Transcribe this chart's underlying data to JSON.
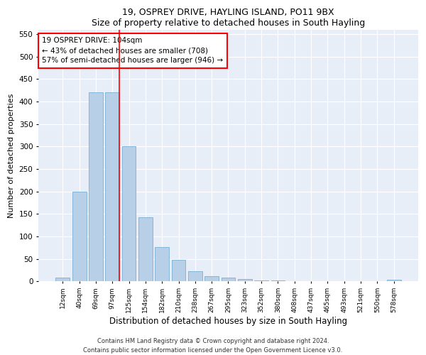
{
  "title": "19, OSPREY DRIVE, HAYLING ISLAND, PO11 9BX",
  "subtitle": "Size of property relative to detached houses in South Hayling",
  "xlabel": "Distribution of detached houses by size in South Hayling",
  "ylabel": "Number of detached properties",
  "categories": [
    "12sqm",
    "40sqm",
    "69sqm",
    "97sqm",
    "125sqm",
    "154sqm",
    "182sqm",
    "210sqm",
    "238sqm",
    "267sqm",
    "295sqm",
    "323sqm",
    "352sqm",
    "380sqm",
    "408sqm",
    "437sqm",
    "465sqm",
    "493sqm",
    "521sqm",
    "550sqm",
    "578sqm"
  ],
  "values": [
    8,
    200,
    420,
    420,
    300,
    143,
    77,
    48,
    23,
    12,
    8,
    6,
    2,
    2,
    1,
    1,
    1,
    0,
    0,
    0,
    3
  ],
  "bar_color": "#b8cfe8",
  "bar_edge_color": "#7aafd4",
  "vline_x": 3.43,
  "vline_color": "red",
  "annotation_line1": "19 OSPREY DRIVE: 104sqm",
  "annotation_line2": "← 43% of detached houses are smaller (708)",
  "annotation_line3": "57% of semi-detached houses are larger (946) →",
  "annotation_box_color": "#ffffff",
  "annotation_box_edge": "red",
  "ylim": [
    0,
    560
  ],
  "yticks": [
    0,
    50,
    100,
    150,
    200,
    250,
    300,
    350,
    400,
    450,
    500,
    550
  ],
  "footer1": "Contains HM Land Registry data © Crown copyright and database right 2024.",
  "footer2": "Contains public sector information licensed under the Open Government Licence v3.0.",
  "bg_color": "#ffffff",
  "plot_bg_color": "#e8eef8"
}
